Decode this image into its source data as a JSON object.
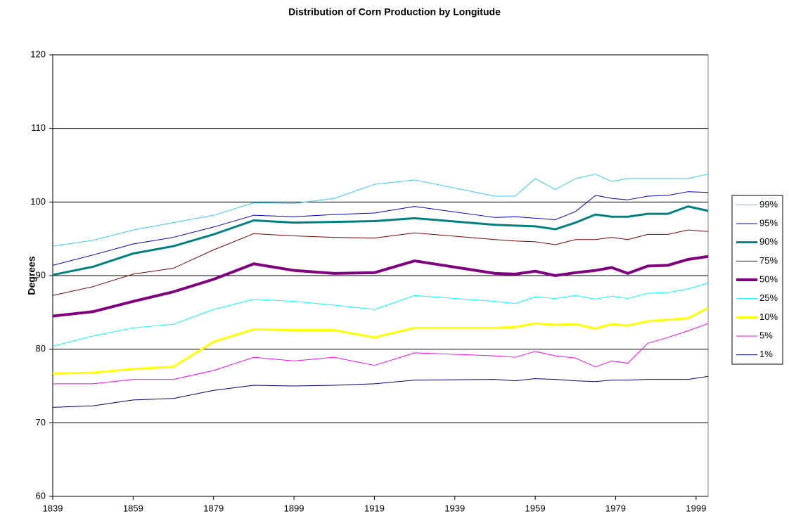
{
  "chart_data": {
    "type": "line",
    "title": "Distribution of Corn Production by Longitude",
    "y_label": "Degrees",
    "x": [
      1839,
      1849,
      1859,
      1869,
      1879,
      1889,
      1899,
      1909,
      1919,
      1929,
      1949,
      1954,
      1959,
      1964,
      1969,
      1974,
      1978,
      1982,
      1987,
      1992,
      1997,
      2002
    ],
    "xlim": [
      1839,
      2002
    ],
    "xticks": [
      1839,
      1859,
      1879,
      1899,
      1919,
      1939,
      1959,
      1979,
      1999
    ],
    "ylim": [
      60,
      120
    ],
    "yticks": [
      60,
      70,
      80,
      90,
      100,
      110,
      120
    ],
    "grid": true,
    "legend": "right",
    "series": [
      {
        "name": "99%",
        "color": "#33ccff",
        "width": 1,
        "values": [
          94.0,
          94.8,
          96.2,
          97.2,
          98.2,
          99.9,
          99.8,
          100.5,
          102.4,
          103.0,
          100.8,
          100.8,
          103.2,
          101.7,
          103.2,
          103.8,
          102.8,
          103.2,
          103.2,
          103.2,
          103.2,
          103.8
        ]
      },
      {
        "name": "95%",
        "color": "#0000cc",
        "width": 1,
        "values": [
          91.4,
          92.8,
          94.3,
          95.2,
          96.6,
          98.2,
          98.0,
          98.3,
          98.5,
          99.4,
          97.9,
          98.0,
          97.8,
          97.6,
          98.7,
          100.9,
          100.5,
          100.3,
          100.8,
          100.9,
          101.4,
          101.3
        ]
      },
      {
        "name": "90%",
        "color": "#008080",
        "width": 3,
        "values": [
          90.1,
          91.2,
          93.0,
          94.0,
          95.6,
          97.5,
          97.2,
          97.3,
          97.4,
          97.8,
          96.9,
          96.8,
          96.7,
          96.3,
          97.2,
          98.3,
          98.0,
          98.0,
          98.4,
          98.4,
          99.4,
          98.8
        ]
      },
      {
        "name": "75%",
        "color": "#800000",
        "width": 1,
        "values": [
          87.3,
          88.5,
          90.2,
          91.0,
          93.5,
          95.7,
          95.4,
          95.2,
          95.1,
          95.8,
          94.9,
          94.7,
          94.6,
          94.2,
          94.9,
          94.9,
          95.2,
          94.9,
          95.6,
          95.6,
          96.2,
          96.0
        ]
      },
      {
        "name": "50%",
        "color": "#800080",
        "width": 4,
        "values": [
          84.5,
          85.1,
          86.5,
          87.8,
          89.5,
          91.6,
          90.7,
          90.3,
          90.4,
          92.0,
          90.3,
          90.2,
          90.6,
          90.0,
          90.4,
          90.7,
          91.1,
          90.3,
          91.3,
          91.4,
          92.2,
          92.6
        ]
      },
      {
        "name": "25%",
        "color": "#00ffff",
        "width": 1,
        "values": [
          80.4,
          81.8,
          82.9,
          83.4,
          85.4,
          86.8,
          86.5,
          86.0,
          85.4,
          87.3,
          86.5,
          86.2,
          87.1,
          86.9,
          87.3,
          86.8,
          87.2,
          86.9,
          87.6,
          87.7,
          88.2,
          89.0
        ]
      },
      {
        "name": "10%",
        "color": "#ffff00",
        "width": 3,
        "values": [
          76.7,
          76.8,
          77.3,
          77.6,
          81.0,
          82.7,
          82.6,
          82.6,
          81.6,
          82.9,
          82.9,
          83.0,
          83.5,
          83.3,
          83.4,
          82.8,
          83.4,
          83.2,
          83.8,
          84.0,
          84.2,
          85.6
        ]
      },
      {
        "name": "5%",
        "color": "#ff00ff",
        "width": 1,
        "values": [
          75.3,
          75.3,
          75.9,
          75.9,
          77.1,
          78.9,
          78.4,
          78.9,
          77.8,
          79.5,
          79.1,
          78.9,
          79.7,
          79.1,
          78.8,
          77.6,
          78.4,
          78.1,
          80.8,
          81.6,
          82.5,
          83.5
        ]
      },
      {
        "name": "1%",
        "color": "#000080",
        "width": 1,
        "values": [
          72.1,
          72.3,
          73.1,
          73.3,
          74.4,
          75.1,
          75.0,
          75.1,
          75.3,
          75.8,
          75.9,
          75.7,
          76.0,
          75.9,
          75.7,
          75.6,
          75.8,
          75.8,
          75.9,
          75.9,
          75.9,
          76.3
        ]
      }
    ]
  }
}
